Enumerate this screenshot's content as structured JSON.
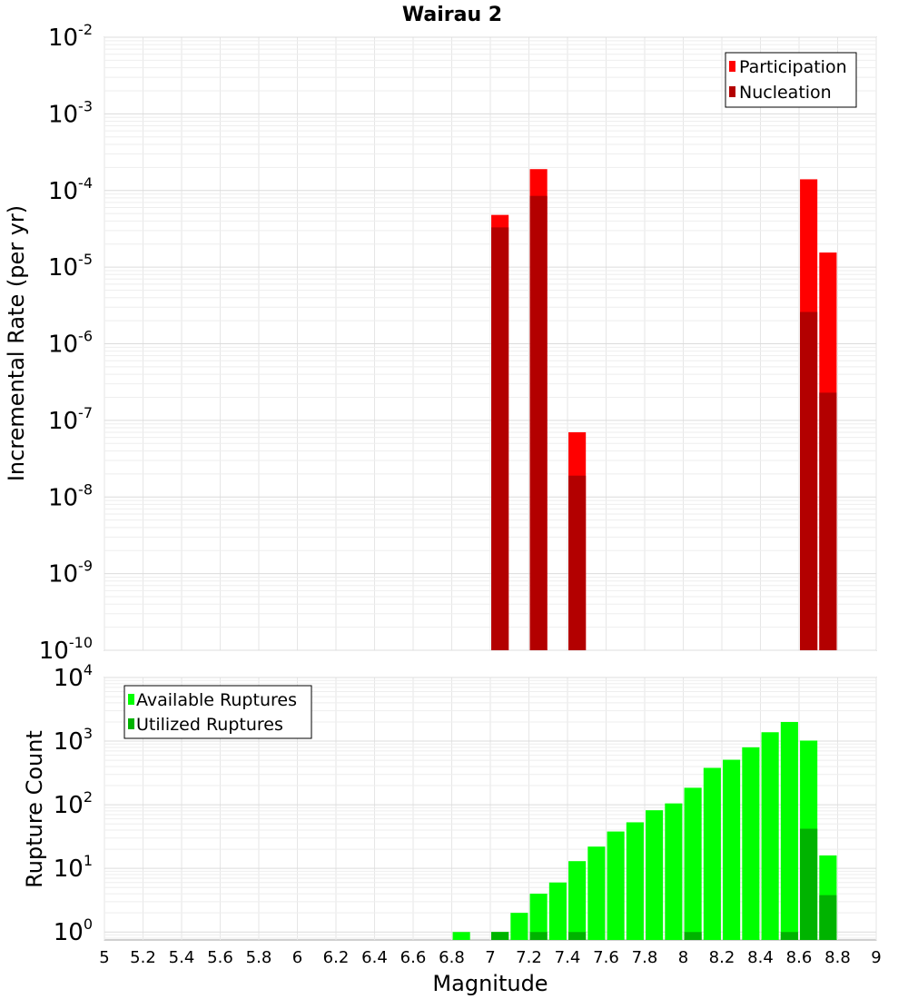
{
  "figure": {
    "title": "Wairau 2",
    "xlabel": "Magnitude"
  },
  "chart_data": [
    {
      "type": "bar",
      "name": "rate-panel",
      "ylabel": "Incremental Rate (per yr)",
      "y_scale": "log",
      "ylim": [
        1e-10,
        0.01
      ],
      "xlim": [
        5,
        9
      ],
      "grid": true,
      "legend_position": "top-right",
      "y_tick_exponents": [
        "-2",
        "-3",
        "-4",
        "-5",
        "-6",
        "-7",
        "-8",
        "-9",
        "-10"
      ],
      "bar_width": 0.09,
      "series": [
        {
          "name": "Participation",
          "color": "#ff0000",
          "points": [
            {
              "x": 7.05,
              "y": 4.8e-05
            },
            {
              "x": 7.25,
              "y": 0.00019
            },
            {
              "x": 7.45,
              "y": 7e-08
            },
            {
              "x": 8.65,
              "y": 0.00014
            },
            {
              "x": 8.75,
              "y": 1.55e-05
            }
          ]
        },
        {
          "name": "Nucleation",
          "color": "#b30000",
          "points": [
            {
              "x": 7.05,
              "y": 3.3e-05
            },
            {
              "x": 7.25,
              "y": 8.5e-05
            },
            {
              "x": 7.45,
              "y": 1.9e-08
            },
            {
              "x": 8.65,
              "y": 2.6e-06
            },
            {
              "x": 8.75,
              "y": 2.3e-07
            }
          ]
        }
      ]
    },
    {
      "type": "bar",
      "name": "count-panel",
      "ylabel": "Rupture Count",
      "y_scale": "log",
      "ylim": [
        0.75,
        10000
      ],
      "xlim": [
        5,
        9
      ],
      "grid": true,
      "legend_position": "top-left",
      "y_tick_exponents": [
        "4",
        "3",
        "2",
        "1",
        "0"
      ],
      "bar_width": 0.09,
      "x_ticks": [
        "5",
        "5.2",
        "5.4",
        "5.6",
        "5.8",
        "6",
        "6.2",
        "6.4",
        "6.6",
        "6.8",
        "7",
        "7.2",
        "7.4",
        "7.6",
        "7.8",
        "8",
        "8.2",
        "8.4",
        "8.6",
        "8.8",
        "9"
      ],
      "series": [
        {
          "name": "Available Ruptures",
          "color": "#00ff00",
          "points": [
            {
              "x": 6.85,
              "y": 1
            },
            {
              "x": 7.05,
              "y": 1
            },
            {
              "x": 7.15,
              "y": 2
            },
            {
              "x": 7.25,
              "y": 4
            },
            {
              "x": 7.35,
              "y": 6
            },
            {
              "x": 7.45,
              "y": 13
            },
            {
              "x": 7.55,
              "y": 22
            },
            {
              "x": 7.65,
              "y": 38
            },
            {
              "x": 7.75,
              "y": 53
            },
            {
              "x": 7.85,
              "y": 82
            },
            {
              "x": 7.95,
              "y": 105
            },
            {
              "x": 8.05,
              "y": 185
            },
            {
              "x": 8.15,
              "y": 380
            },
            {
              "x": 8.25,
              "y": 510
            },
            {
              "x": 8.35,
              "y": 800
            },
            {
              "x": 8.45,
              "y": 1380
            },
            {
              "x": 8.55,
              "y": 2000
            },
            {
              "x": 8.65,
              "y": 1020
            },
            {
              "x": 8.75,
              "y": 16
            }
          ]
        },
        {
          "name": "Utilized Ruptures",
          "color": "#00b300",
          "points": [
            {
              "x": 7.05,
              "y": 1
            },
            {
              "x": 7.25,
              "y": 1
            },
            {
              "x": 7.45,
              "y": 1
            },
            {
              "x": 8.05,
              "y": 1
            },
            {
              "x": 8.55,
              "y": 1
            },
            {
              "x": 8.65,
              "y": 42
            },
            {
              "x": 8.75,
              "y": 3.8
            }
          ]
        }
      ]
    }
  ]
}
